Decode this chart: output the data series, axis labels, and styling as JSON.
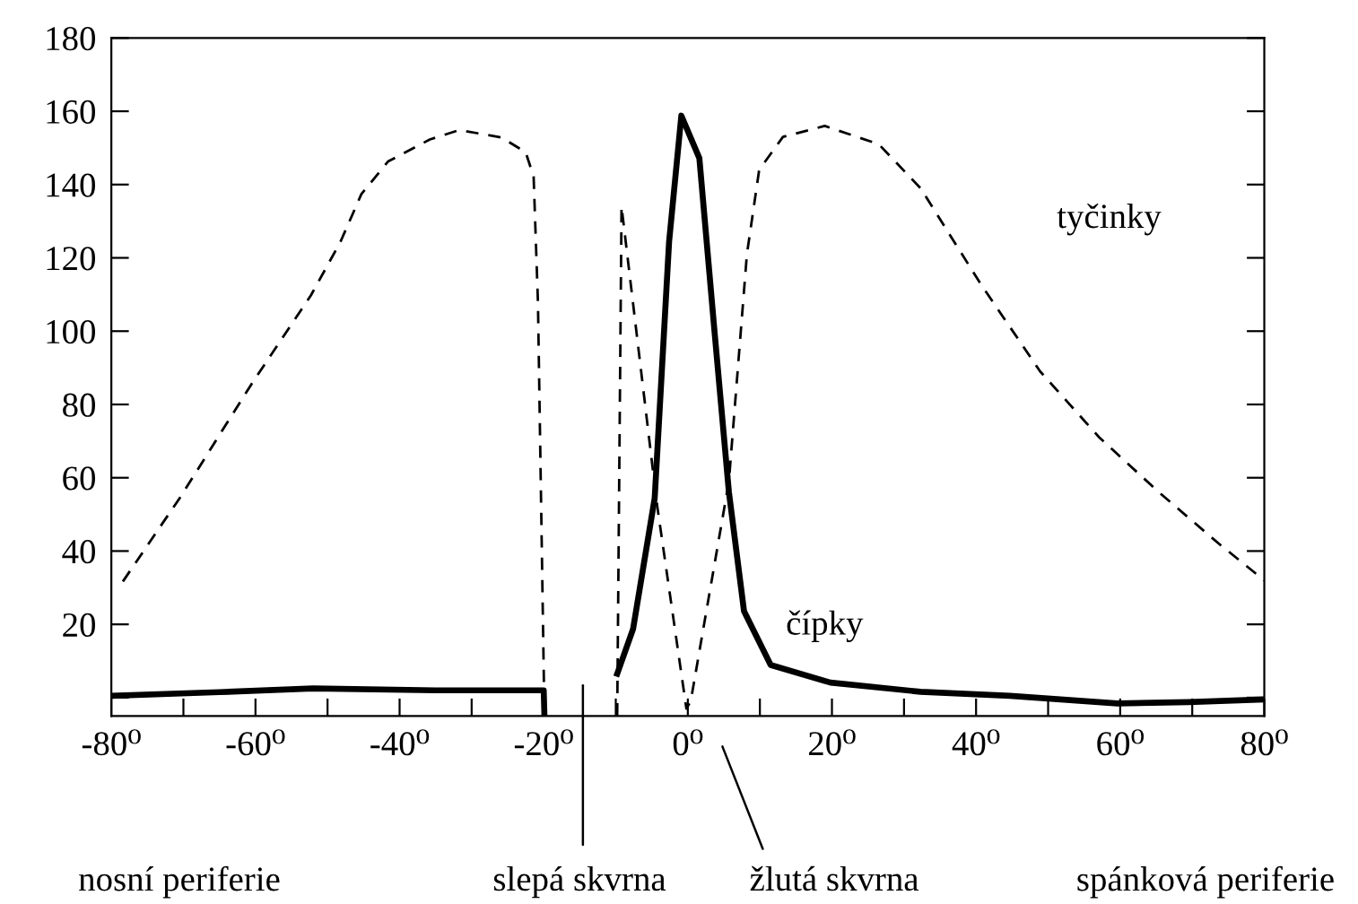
{
  "chart_data": {
    "type": "line",
    "x": [
      -80,
      -65,
      -52,
      -35,
      -20,
      -19.9,
      -15,
      -9.8,
      -7.6,
      -4.6,
      -2.6,
      -0.9,
      1.6,
      3.7,
      5.7,
      7.8,
      11.5,
      19.8,
      32.3,
      44.7,
      59.6,
      69.5,
      80
    ],
    "series": [
      {
        "name": "tyčinky",
        "color": "#000000",
        "line_style": "dashed",
        "x": [
          -78.4,
          -70.5,
          -60.6,
          -52.3,
          -48.2,
          -45.3,
          -41.6,
          -35.8,
          -31.7,
          -25.8,
          -22.5,
          -21.4,
          -20.8,
          -19.9,
          -15,
          -9.8,
          -9.2,
          -4.3,
          -0.2,
          0.4,
          5.7,
          8.2,
          9.9,
          13.2,
          19.0,
          26.5,
          32.3,
          40.6,
          48.9,
          57.1,
          65.4,
          73.7,
          80
        ],
        "values": [
          31.7,
          54.5,
          85.4,
          109.8,
          124.4,
          137.4,
          146.3,
          152.3,
          154.9,
          152.8,
          148.8,
          142.2,
          108,
          -4.9,
          null,
          -4.9,
          134,
          53,
          -3,
          -1,
          59,
          121,
          144,
          153,
          156,
          151,
          139,
          113,
          89,
          71,
          56,
          42,
          32
        ]
      },
      {
        "name": "čípky",
        "color": "#000000",
        "line_style": "solid",
        "values": [
          0.5,
          1.5,
          2.5,
          2,
          2,
          -4.9,
          null,
          6.5,
          18.7,
          54.4,
          124.4,
          158.8,
          147.2,
          100,
          56.1,
          23.6,
          8.9,
          4.1,
          1.6,
          0.5,
          -1.6,
          -1.2,
          -0.5
        ]
      }
    ],
    "xlim": [
      -80,
      80
    ],
    "ylim": [
      -5,
      180
    ],
    "xticks": [
      {
        "value": -80,
        "label": "-80⁰"
      },
      {
        "value": -70,
        "label": null
      },
      {
        "value": -60,
        "label": "-60⁰"
      },
      {
        "value": -50,
        "label": null
      },
      {
        "value": -40,
        "label": "-40⁰"
      },
      {
        "value": -30,
        "label": null
      },
      {
        "value": -20,
        "label": "-20⁰"
      },
      {
        "value": -10,
        "label": null
      },
      {
        "value": 0,
        "label": "0⁰"
      },
      {
        "value": 10,
        "label": null
      },
      {
        "value": 20,
        "label": "20⁰"
      },
      {
        "value": 30,
        "label": null
      },
      {
        "value": 40,
        "label": "40⁰"
      },
      {
        "value": 50,
        "label": null
      },
      {
        "value": 60,
        "label": "60⁰"
      },
      {
        "value": 70,
        "label": null
      },
      {
        "value": 80,
        "label": "80⁰"
      }
    ],
    "yticks": [
      {
        "value": 0,
        "label": null
      },
      20,
      40,
      60,
      80,
      100,
      120,
      140,
      160,
      180
    ],
    "grid": false,
    "legend": false,
    "marker": "none",
    "annotations": [
      "nosní periferie",
      "slepá skvrna",
      "žlutá skvrna",
      "spánková periferie"
    ]
  }
}
